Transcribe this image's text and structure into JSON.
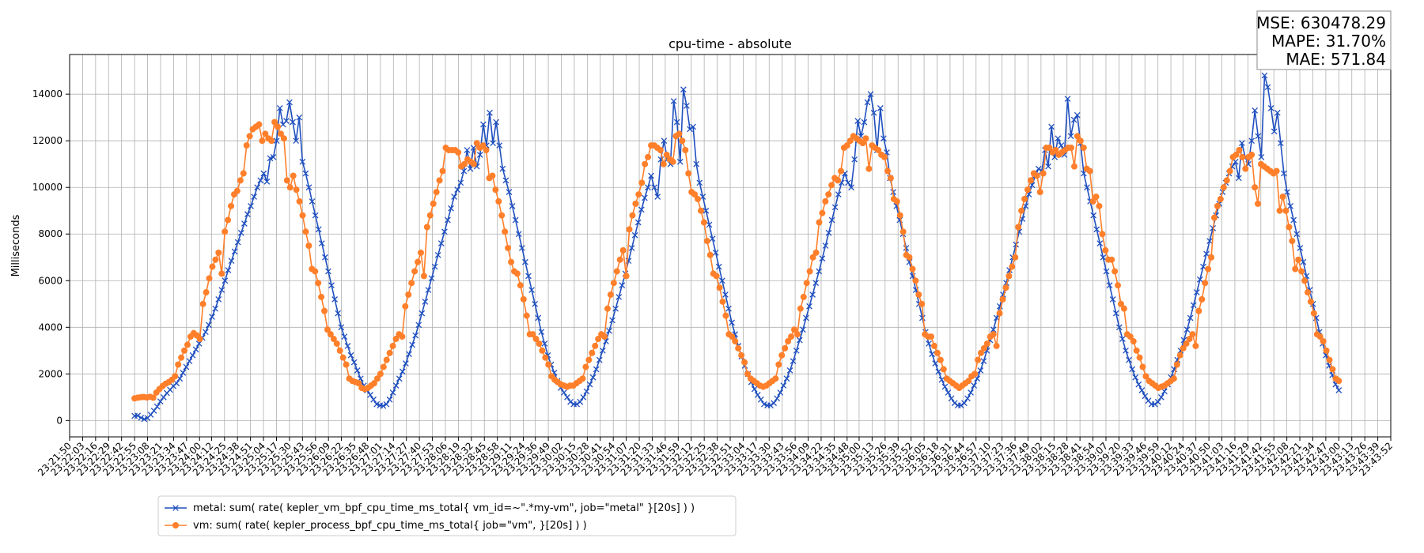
{
  "chart_data": {
    "type": "line",
    "title": "cpu-time - absolute",
    "xlabel": "",
    "ylabel": "Milliseconds",
    "ylim": [
      -700,
      15700
    ],
    "yticks": [
      0,
      2000,
      4000,
      6000,
      8000,
      10000,
      12000,
      14000
    ],
    "grid": true,
    "legend_position": "bottom-left",
    "metrics": {
      "mse": "MSE: 630478.29",
      "mape": "MAPE: 31.70%",
      "mae": "MAE: 571.84"
    },
    "x_tick_labels": [
      "23:21:50",
      "23:22:03",
      "23:22:16",
      "23:22:29",
      "23:22:42",
      "23:22:55",
      "23:23:08",
      "23:23:21",
      "23:23:34",
      "23:23:47",
      "23:24:00",
      "23:24:12",
      "23:24:25",
      "23:24:38",
      "23:24:51",
      "23:25:04",
      "23:25:17",
      "23:25:30",
      "23:25:43",
      "23:25:56",
      "23:26:09",
      "23:26:22",
      "23:26:35",
      "23:26:48",
      "23:27:01",
      "23:27:14",
      "23:27:27",
      "23:27:40",
      "23:27:53",
      "23:28:06",
      "23:28:19",
      "23:28:32",
      "23:28:45",
      "23:28:58",
      "23:29:11",
      "23:29:24",
      "23:29:36",
      "23:29:49",
      "23:30:02",
      "23:30:15",
      "23:30:28",
      "23:30:41",
      "23:30:54",
      "23:31:07",
      "23:31:20",
      "23:31:33",
      "23:31:46",
      "23:31:59",
      "23:32:12",
      "23:32:25",
      "23:32:38",
      "23:32:51",
      "23:33:04",
      "23:33:17",
      "23:33:30",
      "23:33:43",
      "23:33:56",
      "23:34:09",
      "23:34:22",
      "23:34:35",
      "23:34:48",
      "23:35:00",
      "23:35:13",
      "23:35:26",
      "23:35:39",
      "23:35:52",
      "23:36:05",
      "23:36:18",
      "23:36:31",
      "23:36:44",
      "23:36:57",
      "23:37:10",
      "23:37:23",
      "23:37:36",
      "23:37:49",
      "23:38:02",
      "23:38:15",
      "23:38:28",
      "23:38:41",
      "23:38:54",
      "23:39:07",
      "23:39:20",
      "23:39:33",
      "23:39:46",
      "23:39:59",
      "23:40:12",
      "23:40:24",
      "23:40:37",
      "23:40:50",
      "23:41:03",
      "23:41:16",
      "23:41:29",
      "23:41:42",
      "23:41:55",
      "23:42:08",
      "23:42:21",
      "23:42:34",
      "23:42:47",
      "23:43:00",
      "23:43:13",
      "23:43:26",
      "23:43:39",
      "23:43:52"
    ],
    "x_range": [
      "23:21:50",
      "23:43:52"
    ],
    "series": [
      {
        "name": "metal: sum( rate( kepler_vm_bpf_cpu_time_ms_total{ vm_id=~\".*my-vm\", job=\"metal\" }[20s] ) )",
        "color": "#1f4fbf",
        "marker": "x",
        "x_start": "23:22:55",
        "x_end": "23:43:00",
        "values": [
          200,
          210,
          120,
          60,
          110,
          250,
          420,
          600,
          820,
          1000,
          1180,
          1320,
          1480,
          1600,
          1800,
          2050,
          2300,
          2550,
          2800,
          3050,
          3300,
          3550,
          3800,
          4100,
          4450,
          4800,
          5200,
          5600,
          6000,
          6450,
          6850,
          7250,
          7650,
          8050,
          8450,
          8850,
          9200,
          9600,
          10000,
          10300,
          10600,
          10250,
          11250,
          11300,
          12000,
          13400,
          12700,
          12850,
          13650,
          12800,
          12000,
          13000,
          11100,
          10600,
          10000,
          9400,
          8800,
          8200,
          7600,
          7000,
          6400,
          5800,
          5200,
          4600,
          4000,
          3600,
          3200,
          2800,
          2500,
          2150,
          1800,
          1500,
          1300,
          1100,
          900,
          700,
          650,
          630,
          700,
          900,
          1200,
          1500,
          1800,
          2100,
          2450,
          2850,
          3250,
          3650,
          4100,
          4600,
          5100,
          5600,
          6100,
          6600,
          7100,
          7600,
          8100,
          8600,
          9100,
          9600,
          9900,
          10200,
          10700,
          11600,
          10800,
          11700,
          10900,
          11400,
          12700,
          11800,
          13200,
          11900,
          12800,
          11800,
          10800,
          10300,
          9800,
          9200,
          8600,
          8000,
          7400,
          6800,
          6200,
          5600,
          5000,
          4400,
          3800,
          3300,
          2800,
          2400,
          2050,
          1700,
          1400,
          1200,
          1000,
          800,
          700,
          700,
          800,
          1000,
          1250,
          1550,
          1850,
          2200,
          2600,
          3000,
          3400,
          3850,
          4300,
          4800,
          5300,
          5800,
          6300,
          6850,
          7400,
          7950,
          8500,
          9050,
          9550,
          10000,
          10500,
          10000,
          9600,
          11200,
          12000,
          11200,
          11000,
          13700,
          12800,
          11100,
          14200,
          13500,
          12500,
          12600,
          11000,
          10200,
          9600,
          9000,
          8400,
          7800,
          7200,
          6600,
          6000,
          5400,
          4800,
          4200,
          3700,
          3200,
          2750,
          2350,
          2000,
          1650,
          1350,
          1100,
          900,
          700,
          650,
          650,
          750,
          950,
          1200,
          1500,
          1800,
          2150,
          2550,
          3000,
          3450,
          3900,
          4400,
          4900,
          5400,
          5900,
          6400,
          6950,
          7500,
          8050,
          8600,
          9150,
          9700,
          10200,
          10600,
          10200,
          10000,
          11200,
          12850,
          12200,
          12800,
          13650,
          14000,
          13200,
          11600,
          13400,
          12100,
          11500,
          10400,
          9800,
          9200,
          8600,
          8000,
          7400,
          6800,
          6200,
          5600,
          5000,
          4400,
          3800,
          3300,
          2850,
          2450,
          2100,
          1750,
          1450,
          1200,
          950,
          750,
          650,
          650,
          750,
          950,
          1200,
          1500,
          1800,
          2150,
          2550,
          3000,
          3450,
          3900,
          4400,
          4900,
          5400,
          5900,
          6450,
          7000,
          7550,
          8100,
          8650,
          9200,
          9700,
          10100,
          10500,
          10800,
          10700,
          11600,
          10900,
          12600,
          11300,
          12100,
          11800,
          11400,
          13800,
          12200,
          12900,
          13100,
          11900,
          10600,
          10000,
          9400,
          8800,
          8200,
          7600,
          7000,
          6400,
          5800,
          5200,
          4600,
          4000,
          3500,
          3000,
          2600,
          2200,
          1850,
          1550,
          1300,
          1050,
          850,
          700,
          700,
          800,
          1000,
          1250,
          1550,
          1850,
          2200,
          2600,
          3000,
          3450,
          3900,
          4400,
          4950,
          5500,
          6050,
          6600,
          7150,
          7700,
          8250,
          8800,
          9300,
          9800,
          10200,
          10600,
          10900,
          11100,
          10400,
          11900,
          11300,
          11000,
          12000,
          13300,
          12200,
          11300,
          14800,
          14300,
          13400,
          12400,
          13200,
          11900,
          10600,
          9800,
          9200,
          8600,
          8000,
          7400,
          6800,
          6200,
          5600,
          5000,
          4400,
          3800,
          3300,
          2800,
          2350,
          1950,
          1550,
          1300
        ]
      },
      {
        "name": "vm: sum( rate( kepler_process_bpf_cpu_time_ms_total{ job=\"vm\", }[20s] ) )",
        "color": "#ff7f2a",
        "marker": "o",
        "x_start": "23:22:55",
        "x_end": "23:43:00",
        "values": [
          950,
          980,
          1000,
          1010,
          990,
          1020,
          980,
          1200,
          1350,
          1480,
          1580,
          1650,
          1750,
          1900,
          2400,
          2700,
          3000,
          3250,
          3600,
          3750,
          3650,
          3500,
          5000,
          5500,
          6100,
          6600,
          6900,
          7200,
          6300,
          8100,
          8600,
          9200,
          9700,
          9850,
          10300,
          10600,
          11800,
          12200,
          12500,
          12600,
          12700,
          12000,
          12300,
          12100,
          12000,
          12800,
          12600,
          12300,
          12100,
          10300,
          10000,
          10500,
          9900,
          9400,
          8800,
          8100,
          7500,
          6500,
          6400,
          5900,
          5300,
          4700,
          3900,
          3700,
          3500,
          3300,
          3000,
          2700,
          2400,
          1800,
          1700,
          1650,
          1600,
          1400,
          1350,
          1400,
          1500,
          1600,
          1800,
          2000,
          2300,
          2600,
          2900,
          3200,
          3500,
          3700,
          3600,
          4900,
          5400,
          5900,
          6400,
          6800,
          7200,
          6200,
          8300,
          8800,
          9300,
          9800,
          10300,
          10700,
          11700,
          11600,
          11600,
          11600,
          11500,
          10900,
          11000,
          11200,
          11100,
          11000,
          11900,
          11700,
          11800,
          11600,
          10400,
          10500,
          9900,
          9400,
          8800,
          8100,
          7400,
          6800,
          6400,
          6300,
          5800,
          5200,
          4500,
          3700,
          3700,
          3500,
          3300,
          3000,
          2700,
          2400,
          1900,
          1750,
          1650,
          1550,
          1500,
          1450,
          1500,
          1500,
          1600,
          1700,
          1800,
          2300,
          2600,
          2900,
          3200,
          3500,
          3700,
          3600,
          4800,
          5400,
          5900,
          6400,
          6900,
          7300,
          6200,
          8200,
          8800,
          9300,
          9700,
          10200,
          11000,
          11300,
          11800,
          11800,
          11700,
          11600,
          11000,
          11400,
          11200,
          11100,
          12200,
          12300,
          12000,
          11600,
          10600,
          9800,
          9700,
          9500,
          9000,
          8500,
          7700,
          7100,
          6300,
          6200,
          5700,
          5100,
          4500,
          3700,
          3600,
          3400,
          3100,
          2800,
          2500,
          2000,
          1800,
          1700,
          1600,
          1500,
          1450,
          1500,
          1600,
          1700,
          1800,
          2400,
          2800,
          3100,
          3400,
          3600,
          3900,
          3700,
          4800,
          5300,
          5900,
          6400,
          7000,
          7200,
          8500,
          8900,
          9400,
          9700,
          10100,
          10400,
          10300,
          10700,
          11700,
          11800,
          12000,
          12200,
          12100,
          12000,
          11900,
          12100,
          10800,
          11800,
          11700,
          11600,
          11400,
          11300,
          10700,
          10400,
          9500,
          9400,
          8800,
          8100,
          7100,
          7000,
          6500,
          6000,
          5400,
          5000,
          3700,
          3600,
          3600,
          3200,
          2900,
          2600,
          2200,
          1800,
          1700,
          1600,
          1500,
          1400,
          1500,
          1600,
          1700,
          1900,
          2000,
          2600,
          2900,
          3100,
          3300,
          3600,
          3700,
          3200,
          4600,
          5200,
          5700,
          6200,
          6600,
          7000,
          8300,
          9000,
          9500,
          9900,
          10300,
          10600,
          10500,
          9800,
          10600,
          11700,
          11700,
          11500,
          11600,
          11400,
          11500,
          11600,
          11700,
          11700,
          10900,
          12200,
          12000,
          11700,
          10800,
          10700,
          9400,
          9600,
          9200,
          8000,
          7300,
          6900,
          6900,
          6400,
          5800,
          5000,
          4800,
          3700,
          3600,
          3400,
          3000,
          2700,
          2300,
          1900,
          1700,
          1600,
          1500,
          1400,
          1450,
          1500,
          1600,
          1700,
          1800,
          2400,
          2800,
          3100,
          3300,
          3500,
          3700,
          3200,
          4700,
          5200,
          5900,
          6500,
          7000,
          8700,
          9200,
          9500,
          10000,
          10300,
          10700,
          11300,
          11400,
          11600,
          11300,
          10800,
          11300,
          11400,
          10000,
          9300,
          11000,
          10900,
          10800,
          10700,
          10600,
          10700,
          9000,
          9600,
          9000,
          8300,
          7700,
          6500,
          6900,
          6400,
          6000,
          5500,
          5100,
          4600,
          3700,
          3600,
          3400,
          3000,
          2600,
          2200,
          1800,
          1700
        ]
      }
    ]
  }
}
